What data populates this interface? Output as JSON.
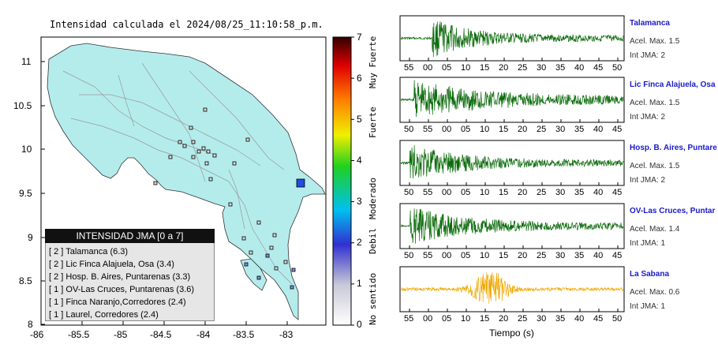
{
  "map": {
    "title": "Intensidad calculada el 2024/08/25_11:10:58_p.m.",
    "lon_ticks": [
      "-86",
      "-85.5",
      "-85",
      "-84.5",
      "-84",
      "-83.5",
      "-83"
    ],
    "lat_ticks": [
      "11",
      "10.5",
      "10",
      "9.5",
      "9",
      "8.5",
      "8"
    ],
    "land_color": "#b4ecec",
    "epicenter_color": "#1f4de0"
  },
  "colorbar": {
    "ticks": [
      "0",
      "1",
      "2",
      "3",
      "4",
      "5",
      "6",
      "7"
    ],
    "labels": [
      "No sentido",
      "Debil",
      "Moderado",
      "Fuerte",
      "Muy Fuerte"
    ]
  },
  "legend": {
    "title": "INTENSIDAD JMA [0 a 7]",
    "rows": [
      "[ 2 ]  Talamanca (6.3)",
      "[ 2 ]  Lic Finca Alajuela, Osa (3.4)",
      "[ 2 ]  Hosp. B. Aires, Puntarenas (3.3)",
      "[ 1 ]  OV-Las Cruces, Puntarenas (3.6)",
      "[ 1 ]  Finca Naranjo,Corredores (2.4)",
      "[ 1 ]  Laurel, Corredores (2.4)"
    ]
  },
  "stations": [
    {
      "name": "Talamanca",
      "accel": "Acel. Max. 1.5",
      "int": "Int JMA: 2",
      "ticks": [
        "55",
        "00",
        "05",
        "10",
        "15",
        "20",
        "25",
        "30",
        "35",
        "40",
        "45",
        "50"
      ],
      "color": "#0b6b0b"
    },
    {
      "name": "Lic Finca Alajuela, Osa",
      "accel": "Acel. Max. 1.5",
      "int": "Int JMA: 2",
      "ticks": [
        "50",
        "55",
        "00",
        "05",
        "10",
        "15",
        "20",
        "25",
        "30",
        "35",
        "40",
        "45"
      ],
      "color": "#0b6b0b"
    },
    {
      "name": "Hosp. B. Aires, Puntare",
      "accel": "Acel. Max. 1.5",
      "int": "Int JMA: 2",
      "ticks": [
        "50",
        "55",
        "00",
        "05",
        "10",
        "15",
        "20",
        "25",
        "30",
        "35",
        "40",
        "45"
      ],
      "color": "#0b6b0b"
    },
    {
      "name": "OV-Las Cruces, Puntar",
      "accel": "Acel. Max. 1.4",
      "int": "Int JMA: 1",
      "ticks": [
        "50",
        "55",
        "00",
        "05",
        "10",
        "15",
        "20",
        "25",
        "30",
        "35",
        "40",
        "45"
      ],
      "color": "#0b6b0b"
    },
    {
      "name": "La Sabana",
      "accel": "Acel. Max. 0.6",
      "int": "Int JMA: 1",
      "ticks": [
        "55",
        "00",
        "05",
        "10",
        "15",
        "20",
        "25",
        "30",
        "35",
        "40",
        "45",
        "50"
      ],
      "color": "#f0a800"
    }
  ],
  "xlabel": "Tiempo (s)"
}
